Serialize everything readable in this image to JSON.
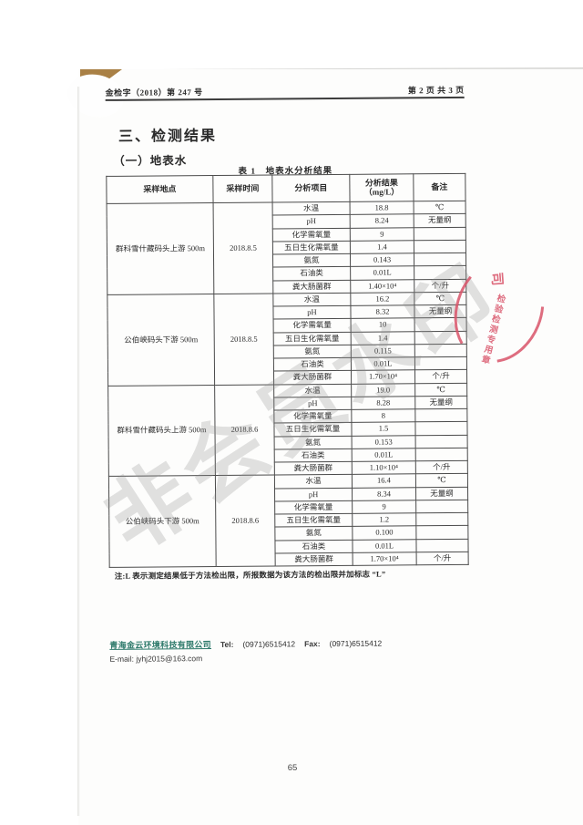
{
  "page": {
    "doc_number": "金检字（2018）第 247 号",
    "page_indicator": "第 2 页 共 3 页",
    "section_title": "三、检测结果",
    "subsection_title": "（一）地表水",
    "page_number": "65"
  },
  "table": {
    "caption": "表 1　地表水分析结果",
    "headers": [
      "采样地点",
      "采样时间",
      "分析项目",
      "分析结果\n（mg/L）",
      "备注"
    ],
    "groups": [
      {
        "location": "群科雪什藏码头上游 500m",
        "date": "2018.8.5",
        "rows": [
          {
            "item": "水温",
            "result": "18.8",
            "remark": "℃"
          },
          {
            "item": "pH",
            "result": "8.24",
            "remark": "无量纲"
          },
          {
            "item": "化学需氧量",
            "result": "9",
            "remark": ""
          },
          {
            "item": "五日生化需氧量",
            "result": "1.4",
            "remark": ""
          },
          {
            "item": "氨氮",
            "result": "0.143",
            "remark": ""
          },
          {
            "item": "石油类",
            "result": "0.01L",
            "remark": ""
          },
          {
            "item": "粪大肠菌群",
            "result": "1.40×10⁴",
            "remark": "个/升"
          }
        ]
      },
      {
        "location": "公伯峡码头下游 500m",
        "date": "2018.8.5",
        "rows": [
          {
            "item": "水温",
            "result": "16.2",
            "remark": "℃"
          },
          {
            "item": "pH",
            "result": "8.32",
            "remark": "无量纲"
          },
          {
            "item": "化学需氧量",
            "result": "10",
            "remark": ""
          },
          {
            "item": "五日生化需氧量",
            "result": "1.4",
            "remark": ""
          },
          {
            "item": "氨氮",
            "result": "0.115",
            "remark": ""
          },
          {
            "item": "石油类",
            "result": "0.01L",
            "remark": ""
          },
          {
            "item": "粪大肠菌群",
            "result": "1.70×10⁴",
            "remark": "个/升"
          }
        ]
      },
      {
        "location": "群科雪什藏码头上游 500m",
        "date": "2018.8.6",
        "rows": [
          {
            "item": "水温",
            "result": "19.0",
            "remark": "℃"
          },
          {
            "item": "pH",
            "result": "8.28",
            "remark": "无量纲"
          },
          {
            "item": "化学需氧量",
            "result": "8",
            "remark": ""
          },
          {
            "item": "五日生化需氧量",
            "result": "1.5",
            "remark": ""
          },
          {
            "item": "氨氮",
            "result": "0.153",
            "remark": ""
          },
          {
            "item": "石油类",
            "result": "0.01L",
            "remark": ""
          },
          {
            "item": "粪大肠菌群",
            "result": "1.10×10⁴",
            "remark": "个/升"
          }
        ]
      },
      {
        "location": "公伯峡码头下游 500m",
        "date": "2018.8.6",
        "rows": [
          {
            "item": "水温",
            "result": "16.4",
            "remark": "℃"
          },
          {
            "item": "pH",
            "result": "8.34",
            "remark": "无量纲"
          },
          {
            "item": "化学需氧量",
            "result": "9",
            "remark": ""
          },
          {
            "item": "五日生化需氧量",
            "result": "1.2",
            "remark": ""
          },
          {
            "item": "氨氮",
            "result": "0.100",
            "remark": ""
          },
          {
            "item": "石油类",
            "result": "0.01L",
            "remark": ""
          },
          {
            "item": "粪大肠菌群",
            "result": "1.70×10⁴",
            "remark": "个/升"
          }
        ]
      }
    ],
    "footnote": "注:L 表示测定结果低于方法检出限，所报数据为该方法的检出限并加标志 “L”"
  },
  "footer": {
    "company": "青海金云环境科技有限公司",
    "company_color": "#2e7a6b",
    "tel_label": "Tel:",
    "tel": "(0971)6515412",
    "fax_label": "Fax:",
    "fax": "(0971)6515412",
    "email_label": "E-mail:",
    "email": "jyhj2015@163.com"
  },
  "watermark": {
    "text": "非会员水印",
    "color": "#8f8f8f"
  },
  "stamp": {
    "rim_char": "司",
    "column_text": "检验检测专用章",
    "color": "#d9546a"
  }
}
